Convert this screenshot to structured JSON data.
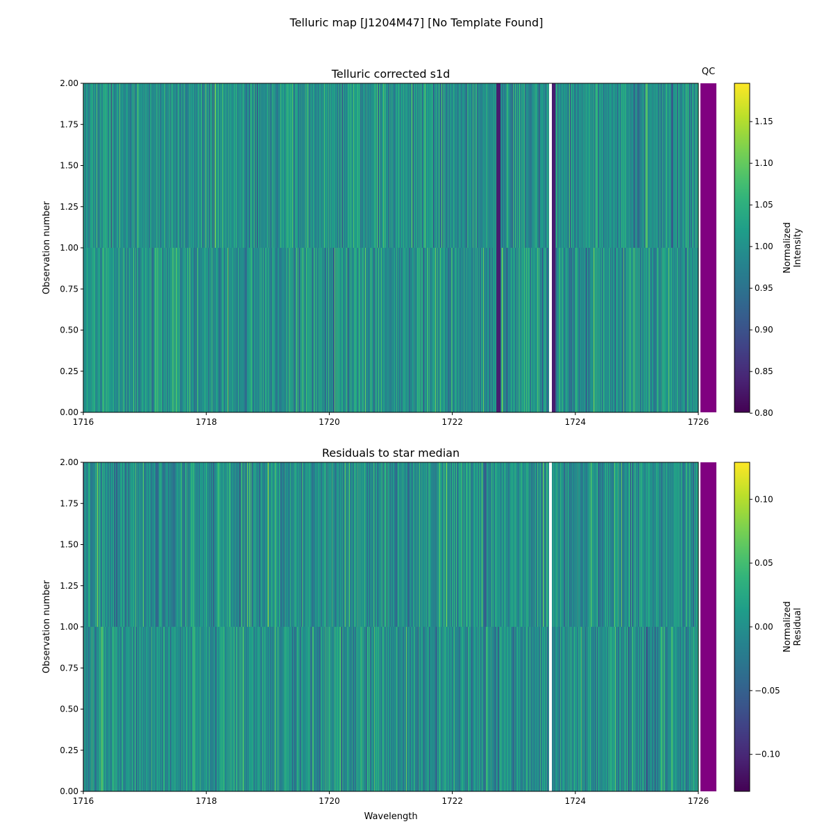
{
  "chart_data": {
    "type": "heatmap",
    "title": "Telluric map [J1204M47] [No Template Found]",
    "colormap": "viridis",
    "qc": {
      "label": "QC",
      "color": "#800080"
    },
    "panels": [
      {
        "title": "Telluric corrected s1d",
        "xlabel": "",
        "ylabel": "Observation number",
        "xlim": [
          1716,
          1726
        ],
        "ylim": [
          0,
          2
        ],
        "rows": 2,
        "xticks": [
          "1716",
          "1718",
          "1720",
          "1722",
          "1724",
          "1726"
        ],
        "yticks": [
          "0.00",
          "0.25",
          "0.50",
          "0.75",
          "1.00",
          "1.25",
          "1.50",
          "1.75",
          "2.00"
        ],
        "gaps": [
          [
            1723.57,
            1723.62
          ]
        ],
        "dark_bands": [
          [
            1722.72,
            1722.78
          ],
          [
            1723.62,
            1723.68
          ]
        ],
        "center": 1.0,
        "colorbar": {
          "label_lines": [
            "Normalized",
            "Intensity"
          ],
          "range": [
            0.801,
            1.196
          ],
          "ticks": [
            "0.80",
            "0.85",
            "0.90",
            "0.95",
            "1.00",
            "1.05",
            "1.10",
            "1.15"
          ]
        }
      },
      {
        "title": "Residuals to star median",
        "xlabel": "Wavelength",
        "ylabel": "Observation number",
        "xlim": [
          1716,
          1726
        ],
        "ylim": [
          0,
          2
        ],
        "rows": 2,
        "xticks": [
          "1716",
          "1718",
          "1720",
          "1722",
          "1724",
          "1726"
        ],
        "yticks": [
          "0.00",
          "0.25",
          "0.50",
          "0.75",
          "1.00",
          "1.25",
          "1.50",
          "1.75",
          "2.00"
        ],
        "gaps": [
          [
            1723.57,
            1723.62
          ]
        ],
        "dark_bands": [],
        "center": 0.0,
        "colorbar": {
          "label_lines": [
            "Normalized",
            "Residual"
          ],
          "range": [
            -0.129,
            0.129
          ],
          "ticks": [
            "−0.10",
            "−0.05",
            "0.00",
            "0.05",
            "0.10"
          ]
        }
      }
    ]
  }
}
